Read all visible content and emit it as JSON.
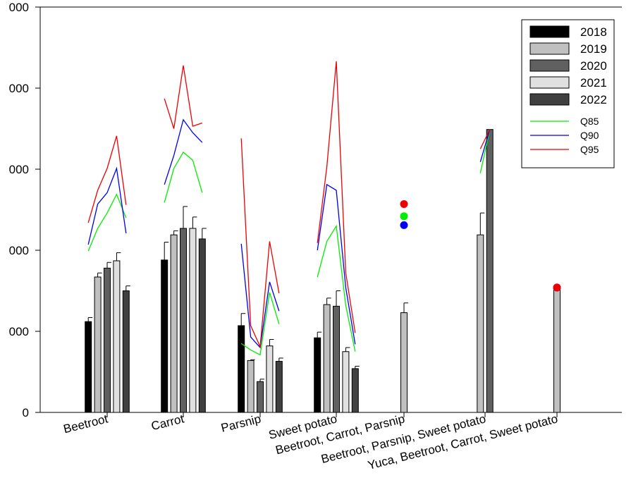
{
  "chart_data": {
    "type": "bar",
    "categories": [
      "Beetroot",
      "Carrot",
      "Parsnip",
      "Sweet potato",
      "Beetroot, Carrot, Parsnip",
      "Beetroot, Parsnip, Sweet potato",
      "Yuca, Beetroot, Carrot, Sweet potato"
    ],
    "ylim": [
      0,
      2500
    ],
    "y_ticks": [
      0,
      500,
      1000,
      1500,
      2000,
      2500
    ],
    "y_tick_labels": [
      "0",
      "000",
      "000",
      "000",
      "000",
      "000"
    ],
    "xlabel": "",
    "ylabel": "",
    "grid": false,
    "legend_position": "top-right",
    "series": [
      {
        "name": "2018",
        "color": "#000000",
        "values": [
          560,
          940,
          535,
          460,
          null,
          null,
          null
        ],
        "errors": [
          25,
          110,
          75,
          35,
          null,
          null,
          null
        ]
      },
      {
        "name": "2019",
        "color": "#c0c0c0",
        "values": [
          835,
          1095,
          320,
          665,
          615,
          1095,
          770
        ],
        "errors": [
          25,
          25,
          5,
          40,
          60,
          135,
          0
        ]
      },
      {
        "name": "2020",
        "color": "#606060",
        "values": [
          890,
          1135,
          190,
          655,
          null,
          1745,
          null
        ],
        "errors": [
          35,
          135,
          15,
          95,
          null,
          0,
          null
        ]
      },
      {
        "name": "2021",
        "color": "#e0e0e0",
        "values": [
          935,
          1135,
          410,
          375,
          null,
          null,
          null
        ],
        "errors": [
          50,
          70,
          40,
          25,
          null,
          null,
          null
        ]
      },
      {
        "name": "2022",
        "color": "#404040",
        "values": [
          750,
          1070,
          315,
          270,
          null,
          null,
          null
        ],
        "errors": [
          30,
          65,
          20,
          15,
          null,
          null,
          null
        ]
      }
    ],
    "quantile_lines": [
      {
        "name": "Q85",
        "color": "#00ee00",
        "values": [
          [
            995,
            1135,
            1230,
            1345,
            1200
          ],
          [
            1295,
            1505,
            1605,
            1555,
            1355
          ],
          [
            425,
            385,
            355,
            740,
            545
          ],
          [
            835,
            1055,
            1150,
            660,
            375
          ],
          [
            1210
          ],
          [
            1475,
            1745
          ],
          [
            770
          ]
        ]
      },
      {
        "name": "Q90",
        "color": "#0000ee",
        "values": [
          [
            1035,
            1285,
            1355,
            1505,
            1105
          ],
          [
            1405,
            1585,
            1805,
            1725,
            1665
          ],
          [
            1040,
            465,
            400,
            805,
            625
          ],
          [
            1000,
            1405,
            1370,
            770,
            420
          ],
          [
            1155
          ],
          [
            1545,
            1745
          ],
          [
            770
          ]
        ]
      },
      {
        "name": "Q95",
        "color": "#ee0000",
        "values": [
          [
            1170,
            1370,
            1505,
            1705,
            1280
          ],
          [
            1935,
            1750,
            2140,
            1765,
            1785
          ],
          [
            1690,
            535,
            405,
            1055,
            735
          ],
          [
            1045,
            1515,
            2165,
            860,
            490
          ],
          [
            1285
          ],
          [
            1625,
            1745
          ],
          [
            770
          ]
        ]
      }
    ]
  }
}
